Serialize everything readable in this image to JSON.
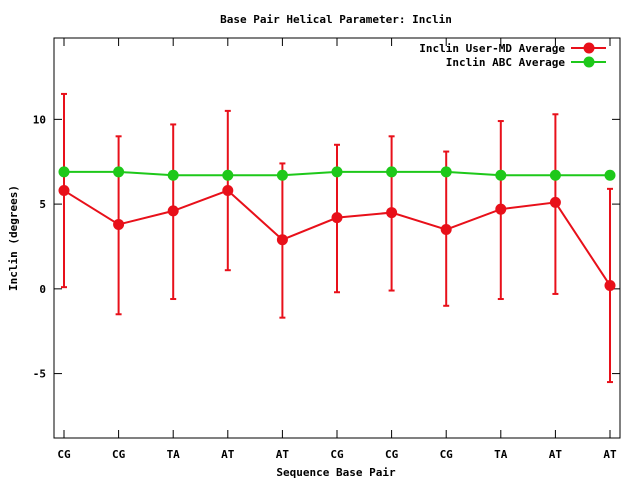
{
  "chart_data": {
    "type": "line",
    "title": "Base Pair Helical Parameter: Inclin",
    "xlabel": "Sequence Base Pair",
    "ylabel": "Inclin (degrees)",
    "categories": [
      "CG",
      "CG",
      "TA",
      "AT",
      "AT",
      "CG",
      "CG",
      "CG",
      "TA",
      "AT",
      "AT"
    ],
    "ylim": [
      -8.8,
      14.8
    ],
    "yticks": [
      -5,
      0,
      5,
      10
    ],
    "grid": false,
    "legend_position": "top-right",
    "series": [
      {
        "name": "Inclin User-MD Average",
        "color": "#e8101a",
        "values": [
          5.8,
          3.8,
          4.6,
          5.8,
          2.9,
          4.2,
          4.5,
          3.5,
          4.7,
          5.1,
          0.2
        ],
        "err_low": [
          0.1,
          -1.5,
          -0.6,
          1.1,
          -1.7,
          -0.2,
          -0.1,
          -1.0,
          -0.6,
          -0.3,
          -5.5
        ],
        "err_high": [
          11.5,
          9.0,
          9.7,
          10.5,
          7.4,
          8.5,
          9.0,
          8.1,
          9.9,
          10.3,
          5.9
        ]
      },
      {
        "name": "Inclin ABC Average",
        "color": "#1ec81a",
        "values": [
          6.9,
          6.9,
          6.7,
          6.7,
          6.7,
          6.9,
          6.9,
          6.9,
          6.7,
          6.7,
          6.7
        ]
      }
    ]
  }
}
